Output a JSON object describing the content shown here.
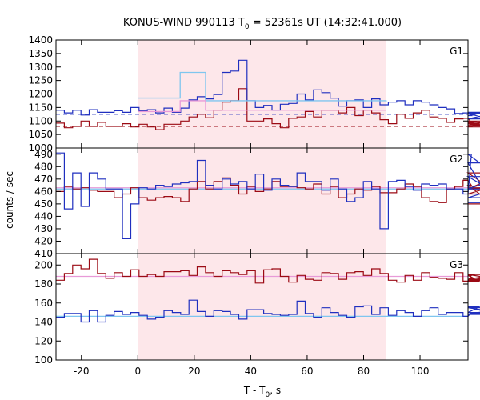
{
  "title": {
    "main": "KONUS-WIND 990113 T",
    "sub": "0",
    "rest": " = 52361s UT (14:32:41.000)"
  },
  "ylabel": "counts / sec",
  "xlabel": {
    "main": "T - T",
    "sub": "0",
    "rest": ", s"
  },
  "colors": {
    "blue": "#1f2fbf",
    "red": "#9b0a14",
    "light_blue": "#7fc6ef",
    "pink": "#e89ad8",
    "shade": "#fde7ea",
    "frame": "#000000"
  },
  "chart_data": {
    "type": "line",
    "xlim": [
      -29,
      117
    ],
    "xticks": [
      "-20",
      "0",
      "20",
      "40",
      "60",
      "80",
      "100"
    ],
    "xtick_values": [
      -20,
      0,
      20,
      40,
      60,
      80,
      100
    ],
    "shaded_interval": [
      0,
      88
    ],
    "panels": [
      {
        "label": "G1",
        "ylim": [
          1000,
          1400
        ],
        "yticks": [
          "1000",
          "1050",
          "1100",
          "1150",
          "1200",
          "1250",
          "1300",
          "1350",
          "1400"
        ],
        "ytick_values": [
          1000,
          1050,
          1100,
          1150,
          1200,
          1250,
          1300,
          1350,
          1400
        ],
        "blue_bg": 1125,
        "red_bg": 1080,
        "blue": [
          1140,
          1130,
          1140,
          1122,
          1142,
          1132,
          1132,
          1138,
          1132,
          1150,
          1138,
          1142,
          1130,
          1148,
          1132,
          1148,
          1178,
          1190,
          1182,
          1198,
          1280,
          1285,
          1325,
          1175,
          1150,
          1158,
          1140,
          1162,
          1165,
          1200,
          1178,
          1215,
          1205,
          1185,
          1155,
          1175,
          1178,
          1150,
          1182,
          1160,
          1170,
          1175,
          1160,
          1175,
          1170,
          1160,
          1150,
          1145,
          1128,
          1130,
          1120,
          1128,
          1108,
          1130,
          1128,
          1132
        ],
        "red": [
          1092,
          1075,
          1080,
          1100,
          1080,
          1095,
          1080,
          1080,
          1090,
          1078,
          1088,
          1078,
          1068,
          1088,
          1088,
          1100,
          1115,
          1125,
          1112,
          1140,
          1170,
          1175,
          1220,
          1100,
          1100,
          1108,
          1090,
          1075,
          1110,
          1115,
          1135,
          1115,
          1140,
          1140,
          1130,
          1150,
          1120,
          1140,
          1130,
          1105,
          1090,
          1125,
          1110,
          1130,
          1140,
          1115,
          1110,
          1095,
          1108,
          1110,
          1095,
          1090,
          1078,
          1100,
          1085,
          1092
        ],
        "light_blue_step": [
          [
            0,
            1185
          ],
          [
            15,
            1280
          ],
          [
            24,
            1175
          ],
          [
            88,
            1170
          ]
        ],
        "pink_step": [
          [
            0,
            1135
          ],
          [
            15,
            1175
          ],
          [
            24,
            1140
          ],
          [
            88,
            1140
          ]
        ]
      },
      {
        "label": "G2",
        "ylim": [
          410,
          495
        ],
        "yticks": [
          "410",
          "420",
          "430",
          "440",
          "450",
          "460",
          "470",
          "480",
          "490"
        ],
        "ytick_values": [
          410,
          420,
          430,
          440,
          450,
          460,
          470,
          480,
          490
        ],
        "blue": [
          491,
          446,
          475,
          448,
          475,
          470,
          462,
          462,
          422,
          450,
          463,
          462,
          465,
          464,
          466,
          467,
          468,
          485,
          465,
          462,
          470,
          466,
          468,
          462,
          474,
          461,
          470,
          465,
          464,
          475,
          468,
          468,
          461,
          470,
          462,
          452,
          455,
          468,
          462,
          430,
          468,
          469,
          464,
          461,
          466,
          465,
          466,
          462,
          462,
          458,
          490,
          483,
          455,
          462,
          472,
          451
        ],
        "red": [
          460,
          464,
          462,
          463,
          461,
          460,
          460,
          455,
          458,
          463,
          455,
          453,
          455,
          456,
          455,
          452,
          462,
          468,
          462,
          468,
          471,
          465,
          458,
          464,
          460,
          462,
          468,
          464,
          464,
          463,
          462,
          466,
          458,
          464,
          455,
          458,
          462,
          461,
          464,
          459,
          459,
          462,
          466,
          464,
          455,
          452,
          451,
          462,
          464,
          469,
          465,
          458,
          463,
          462,
          475,
          450
        ],
        "light_blue_level": 462,
        "pink_level": 463
      },
      {
        "label": "G3",
        "ylim": [
          100,
          212
        ],
        "yticks": [
          "100",
          "120",
          "140",
          "160",
          "180",
          "200"
        ],
        "ytick_values": [
          100,
          120,
          140,
          160,
          180,
          200
        ],
        "blue": [
          145,
          149,
          149,
          140,
          152,
          140,
          147,
          151,
          148,
          150,
          147,
          143,
          145,
          152,
          150,
          148,
          163,
          151,
          146,
          152,
          151,
          148,
          143,
          153,
          153,
          149,
          148,
          147,
          148,
          162,
          149,
          145,
          155,
          150,
          147,
          145,
          156,
          157,
          148,
          155,
          147,
          152,
          150,
          146,
          152,
          155,
          148,
          150,
          150,
          146,
          150,
          156,
          150,
          148,
          155,
          148
        ],
        "red": [
          184,
          191,
          200,
          196,
          206,
          191,
          186,
          192,
          188,
          195,
          188,
          190,
          188,
          193,
          193,
          194,
          189,
          198,
          192,
          188,
          194,
          192,
          190,
          194,
          181,
          195,
          196,
          188,
          182,
          189,
          185,
          184,
          192,
          191,
          185,
          192,
          193,
          189,
          196,
          191,
          184,
          182,
          189,
          184,
          192,
          187,
          186,
          185,
          192,
          183,
          189,
          183,
          185,
          190,
          184,
          190
        ],
        "light_blue_level": 146,
        "pink_level": 188
      }
    ]
  }
}
